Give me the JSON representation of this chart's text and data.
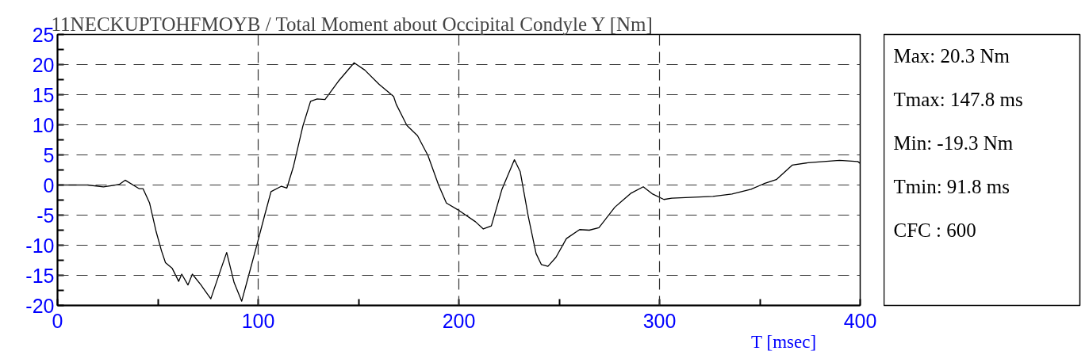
{
  "chart_data": {
    "type": "line",
    "title": "11NECKUPTOHFMOYB / Total Moment about Occipital Condyle Y [Nm]",
    "xlabel": "T [msec]",
    "x": [
      0,
      15,
      22.9,
      30.8,
      33.7,
      40.6,
      42.6,
      45.9,
      49.2,
      51.8,
      53.8,
      57.1,
      60.4,
      61.9,
      65,
      67.2,
      71.5,
      76.4,
      81.4,
      84.3,
      88,
      91.8,
      95.2,
      99.8,
      103.1,
      106.4,
      111.6,
      114.3,
      117.6,
      122.2,
      126.1,
      129.4,
      133.3,
      139.9,
      147.8,
      153.1,
      160.3,
      167.5,
      168.8,
      174.1,
      179.4,
      184.6,
      189.9,
      193.8,
      200.4,
      208.3,
      212.2,
      216.2,
      221.4,
      227.7,
      230.6,
      234.6,
      238.5,
      241.1,
      244.4,
      248.4,
      253.6,
      260.2,
      265,
      269.8,
      277.7,
      285.6,
      291.9,
      296.6,
      302.2,
      306.1,
      326.6,
      336.1,
      345.6,
      351.9,
      358.2,
      366.1,
      374,
      389.7,
      398.8,
      400
    ],
    "series": [
      {
        "color": "#000000",
        "values": [
          0,
          0,
          -0.3,
          0.1,
          0.8,
          -0.6,
          -0.6,
          -3,
          -7.8,
          -10.9,
          -12.9,
          -13.8,
          -16,
          -14.8,
          -16.6,
          -14.8,
          -16.6,
          -18.9,
          -14,
          -11.2,
          -16.2,
          -19.3,
          -15.1,
          -9.4,
          -5.2,
          -1.1,
          -0.2,
          -0.5,
          3.1,
          9.7,
          13.9,
          14.3,
          14.2,
          17.2,
          20.3,
          19.1,
          16.7,
          14.7,
          13.4,
          9.9,
          8.2,
          4.9,
          0,
          -3,
          -4.3,
          -6.1,
          -7.3,
          -6.8,
          -0.8,
          4.2,
          2.2,
          -5.2,
          -11.4,
          -13.2,
          -13.5,
          -12,
          -8.9,
          -7.4,
          -7.5,
          -7.1,
          -3.7,
          -1.4,
          -0.3,
          -1.5,
          -2.4,
          -2.2,
          -1.9,
          -1.5,
          -0.7,
          0.2,
          0.9,
          3.3,
          3.7,
          4.1,
          3.9,
          3.6
        ]
      }
    ],
    "xlim": [
      0,
      400
    ],
    "ylim": [
      -20,
      25
    ],
    "xticks": [
      0,
      {
        "value": 50,
        "label": null
      },
      100,
      {
        "value": 150,
        "label": null
      },
      200,
      {
        "value": 250,
        "label": null
      },
      300,
      {
        "value": 350,
        "label": null
      },
      400
    ],
    "yticks": [
      -20,
      {
        "value": -17.5,
        "label": null
      },
      -15,
      {
        "value": -12.5,
        "label": null
      },
      -10,
      {
        "value": -7.5,
        "label": null
      },
      -5,
      {
        "value": -2.5,
        "label": null
      },
      0,
      {
        "value": 2.5,
        "label": null
      },
      5,
      {
        "value": 7.5,
        "label": null
      },
      10,
      {
        "value": 12.5,
        "label": null
      },
      15,
      {
        "value": 17.5,
        "label": null
      },
      20,
      {
        "value": 22.5,
        "label": null
      },
      25
    ],
    "grid": true,
    "line_style": "solid",
    "annotations": [
      "Max:   20.3 Nm",
      "Tmax: 147.8 ms",
      "Min:  -19.3 Nm",
      "Tmin:  91.8 ms",
      "CFC : 600"
    ]
  }
}
